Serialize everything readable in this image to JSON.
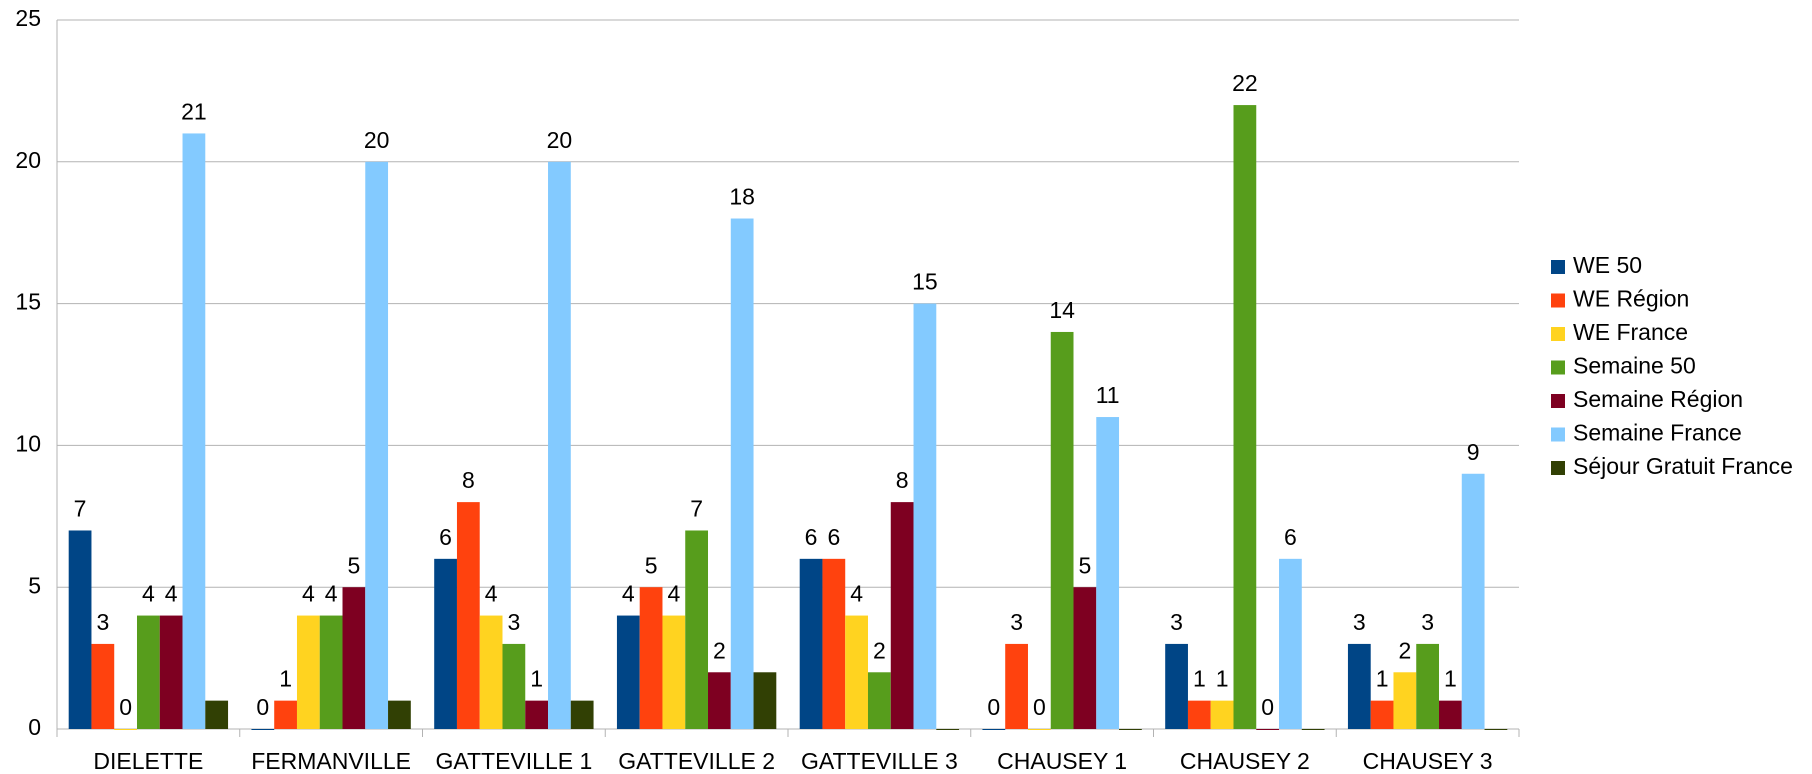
{
  "chart_data": {
    "type": "bar",
    "categories": [
      "DIELETTE",
      "FERMANVILLE",
      "GATTEVILLE 1",
      "GATTEVILLE 2",
      "GATTEVILLE 3",
      "CHAUSEY 1",
      "CHAUSEY 2",
      "CHAUSEY 3"
    ],
    "series": [
      {
        "name": "WE 50",
        "color": "#004586",
        "show_labels": true,
        "values": [
          7,
          0,
          6,
          4,
          6,
          0,
          3,
          3
        ]
      },
      {
        "name": "WE Région",
        "color": "#ff420e",
        "show_labels": true,
        "values": [
          3,
          1,
          8,
          5,
          6,
          3,
          1,
          1
        ]
      },
      {
        "name": "WE France",
        "color": "#ffd320",
        "show_labels": true,
        "values": [
          0,
          4,
          4,
          4,
          4,
          0,
          1,
          2
        ]
      },
      {
        "name": "Semaine 50",
        "color": "#579d1c",
        "show_labels": true,
        "values": [
          4,
          4,
          3,
          7,
          2,
          14,
          22,
          3
        ]
      },
      {
        "name": "Semaine Région",
        "color": "#7e0021",
        "show_labels": true,
        "values": [
          4,
          5,
          1,
          2,
          8,
          5,
          0,
          1
        ]
      },
      {
        "name": "Semaine France",
        "color": "#83caff",
        "show_labels": true,
        "values": [
          21,
          20,
          20,
          18,
          15,
          11,
          6,
          9
        ]
      },
      {
        "name": "Séjour Gratuit France",
        "color": "#314004",
        "show_labels": false,
        "values": [
          1,
          1,
          1,
          2,
          0,
          0,
          0,
          0
        ]
      }
    ],
    "ylim": [
      0,
      25
    ],
    "yticks": [
      0,
      5,
      10,
      15,
      20,
      25
    ],
    "grid": true,
    "legend": "right"
  }
}
